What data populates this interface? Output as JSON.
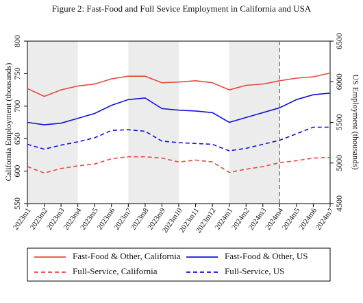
{
  "chart_data": {
    "type": "line",
    "title": "Figure 2: Fast-Food and Full Sevice Employment in California and USA",
    "y_label": "California Employment (thousands)",
    "y2_label": "US Employment (thousands)",
    "categories": [
      "2023m1",
      "2023m2",
      "2023m3",
      "2023m4",
      "2023m5",
      "2023m6",
      "2023m7",
      "2023m8",
      "2023m9",
      "2023m10",
      "2023m11",
      "2023m12",
      "2024m1",
      "2024m2",
      "2024m3",
      "2024m4",
      "2024m5",
      "2024m6",
      "2024m7"
    ],
    "series": [
      {
        "name": "Fast-Food & Other, California",
        "color": "#e5493d",
        "linestyle": "solid",
        "values": [
          727,
          715,
          725,
          731,
          734,
          742,
          746,
          746,
          736,
          737,
          739,
          736,
          725,
          732,
          734,
          739,
          743,
          745,
          751
        ]
      },
      {
        "name": "Fast-Food & Other, US",
        "color": "#1111dd",
        "linestyle": "solid",
        "axis": "y2",
        "values": [
          5500,
          5470,
          5490,
          5550,
          5610,
          5710,
          5780,
          5800,
          5670,
          5650,
          5640,
          5620,
          5500,
          5560,
          5620,
          5680,
          5780,
          5840,
          5860
        ]
      },
      {
        "name": "Full-Service, California",
        "color": "#e5493d",
        "linestyle": "dashed",
        "values": [
          607,
          597,
          604,
          608,
          611,
          619,
          622,
          622,
          620,
          614,
          617,
          614,
          598,
          603,
          607,
          613,
          616,
          620,
          621
        ]
      },
      {
        "name": "Full-Service, US",
        "color": "#1111dd",
        "linestyle": "dashed",
        "axis": "y2",
        "values": [
          5230,
          5170,
          5220,
          5260,
          5310,
          5400,
          5410,
          5390,
          5270,
          5250,
          5240,
          5230,
          5150,
          5180,
          5230,
          5280,
          5360,
          5440,
          5440
        ]
      }
    ],
    "vline_category": "2024m4",
    "ylim": [
      550,
      800
    ],
    "yticks": [
      550,
      600,
      650,
      700,
      750,
      800
    ],
    "y2lim": [
      4500,
      6500
    ],
    "y2ticks": [
      4500,
      5000,
      5500,
      6000,
      6500
    ],
    "legend": "bottom"
  }
}
